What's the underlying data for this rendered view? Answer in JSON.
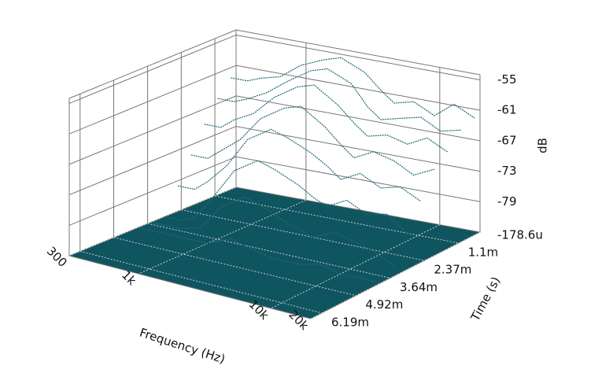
{
  "chart_data": {
    "type": "waterfall",
    "x_label": "Frequency (Hz)",
    "y_label": "Time (s)",
    "z_label": "dB",
    "xlim": [
      300,
      20000
    ],
    "xlog": true,
    "xticks": [
      300,
      {
        "value": 1000,
        "label": "1k"
      },
      {
        "value": 10000,
        "label": "10k"
      },
      {
        "value": 20000,
        "label": "20k"
      }
    ],
    "ylim": [
      0.0003,
      0.0066
    ],
    "yticks": [
      {
        "value": 0.0011,
        "label": "1.1m"
      },
      {
        "value": 0.00237,
        "label": "2.37m"
      },
      {
        "value": 0.00364,
        "label": "3.64m"
      },
      {
        "value": 0.00492,
        "label": "4.92m"
      },
      {
        "value": 0.00619,
        "label": "6.19m"
      }
    ],
    "zlim": [
      -85,
      -54
    ],
    "zticks": [
      -55,
      -61,
      -67,
      -73,
      -79
    ],
    "floor_label": "-178.6u",
    "color": "#1f6873",
    "floor_color": "#0f5560",
    "grid": true,
    "x": [
      300,
      400,
      500,
      700,
      1000,
      1500,
      2000,
      3000,
      4000,
      5000,
      7000,
      10000,
      14000,
      20000
    ],
    "slices": [
      {
        "t": 0.0005,
        "values": [
          -63,
          -63,
          -62,
          -61,
          -58,
          -56,
          -55,
          -57,
          -60,
          -62,
          -61,
          -63,
          -60,
          -62
        ]
      },
      {
        "t": 0.001,
        "values": [
          -66,
          -66,
          -65,
          -63,
          -60,
          -57,
          -56,
          -58,
          -62,
          -64,
          -63,
          -62,
          -64,
          -63
        ]
      },
      {
        "t": 0.0015,
        "values": [
          -70,
          -70,
          -68,
          -66,
          -62,
          -59,
          -58,
          -61,
          -64,
          -66,
          -65,
          -66,
          -64,
          -66
        ]
      },
      {
        "t": 0.002,
        "values": [
          -75,
          -75,
          -73,
          -70,
          -65,
          -62,
          -61,
          -64,
          -67,
          -69,
          -67,
          -68,
          -70,
          -68
        ]
      },
      {
        "t": 0.0025,
        "values": [
          -80,
          -80,
          -78,
          -74,
          -68,
          -65,
          -66,
          -68,
          -70,
          -72,
          -70,
          -72,
          -71,
          -73
        ]
      },
      {
        "t": 0.003,
        "values": [
          -85,
          -85,
          -84,
          -79,
          -73,
          -70,
          -71,
          -73,
          -75,
          -76,
          -74,
          -76,
          -75,
          -78
        ]
      },
      {
        "t": 0.0035,
        "values": [
          -85,
          -85,
          -85,
          -84,
          -79,
          -76,
          -77,
          -79,
          -80,
          -81,
          -79,
          -80,
          -81,
          -83
        ]
      },
      {
        "t": 0.004,
        "values": [
          -85,
          -85,
          -85,
          -85,
          -85,
          -83,
          -84,
          -85,
          -85,
          -85,
          -84,
          -85,
          -85,
          -85
        ]
      }
    ]
  }
}
